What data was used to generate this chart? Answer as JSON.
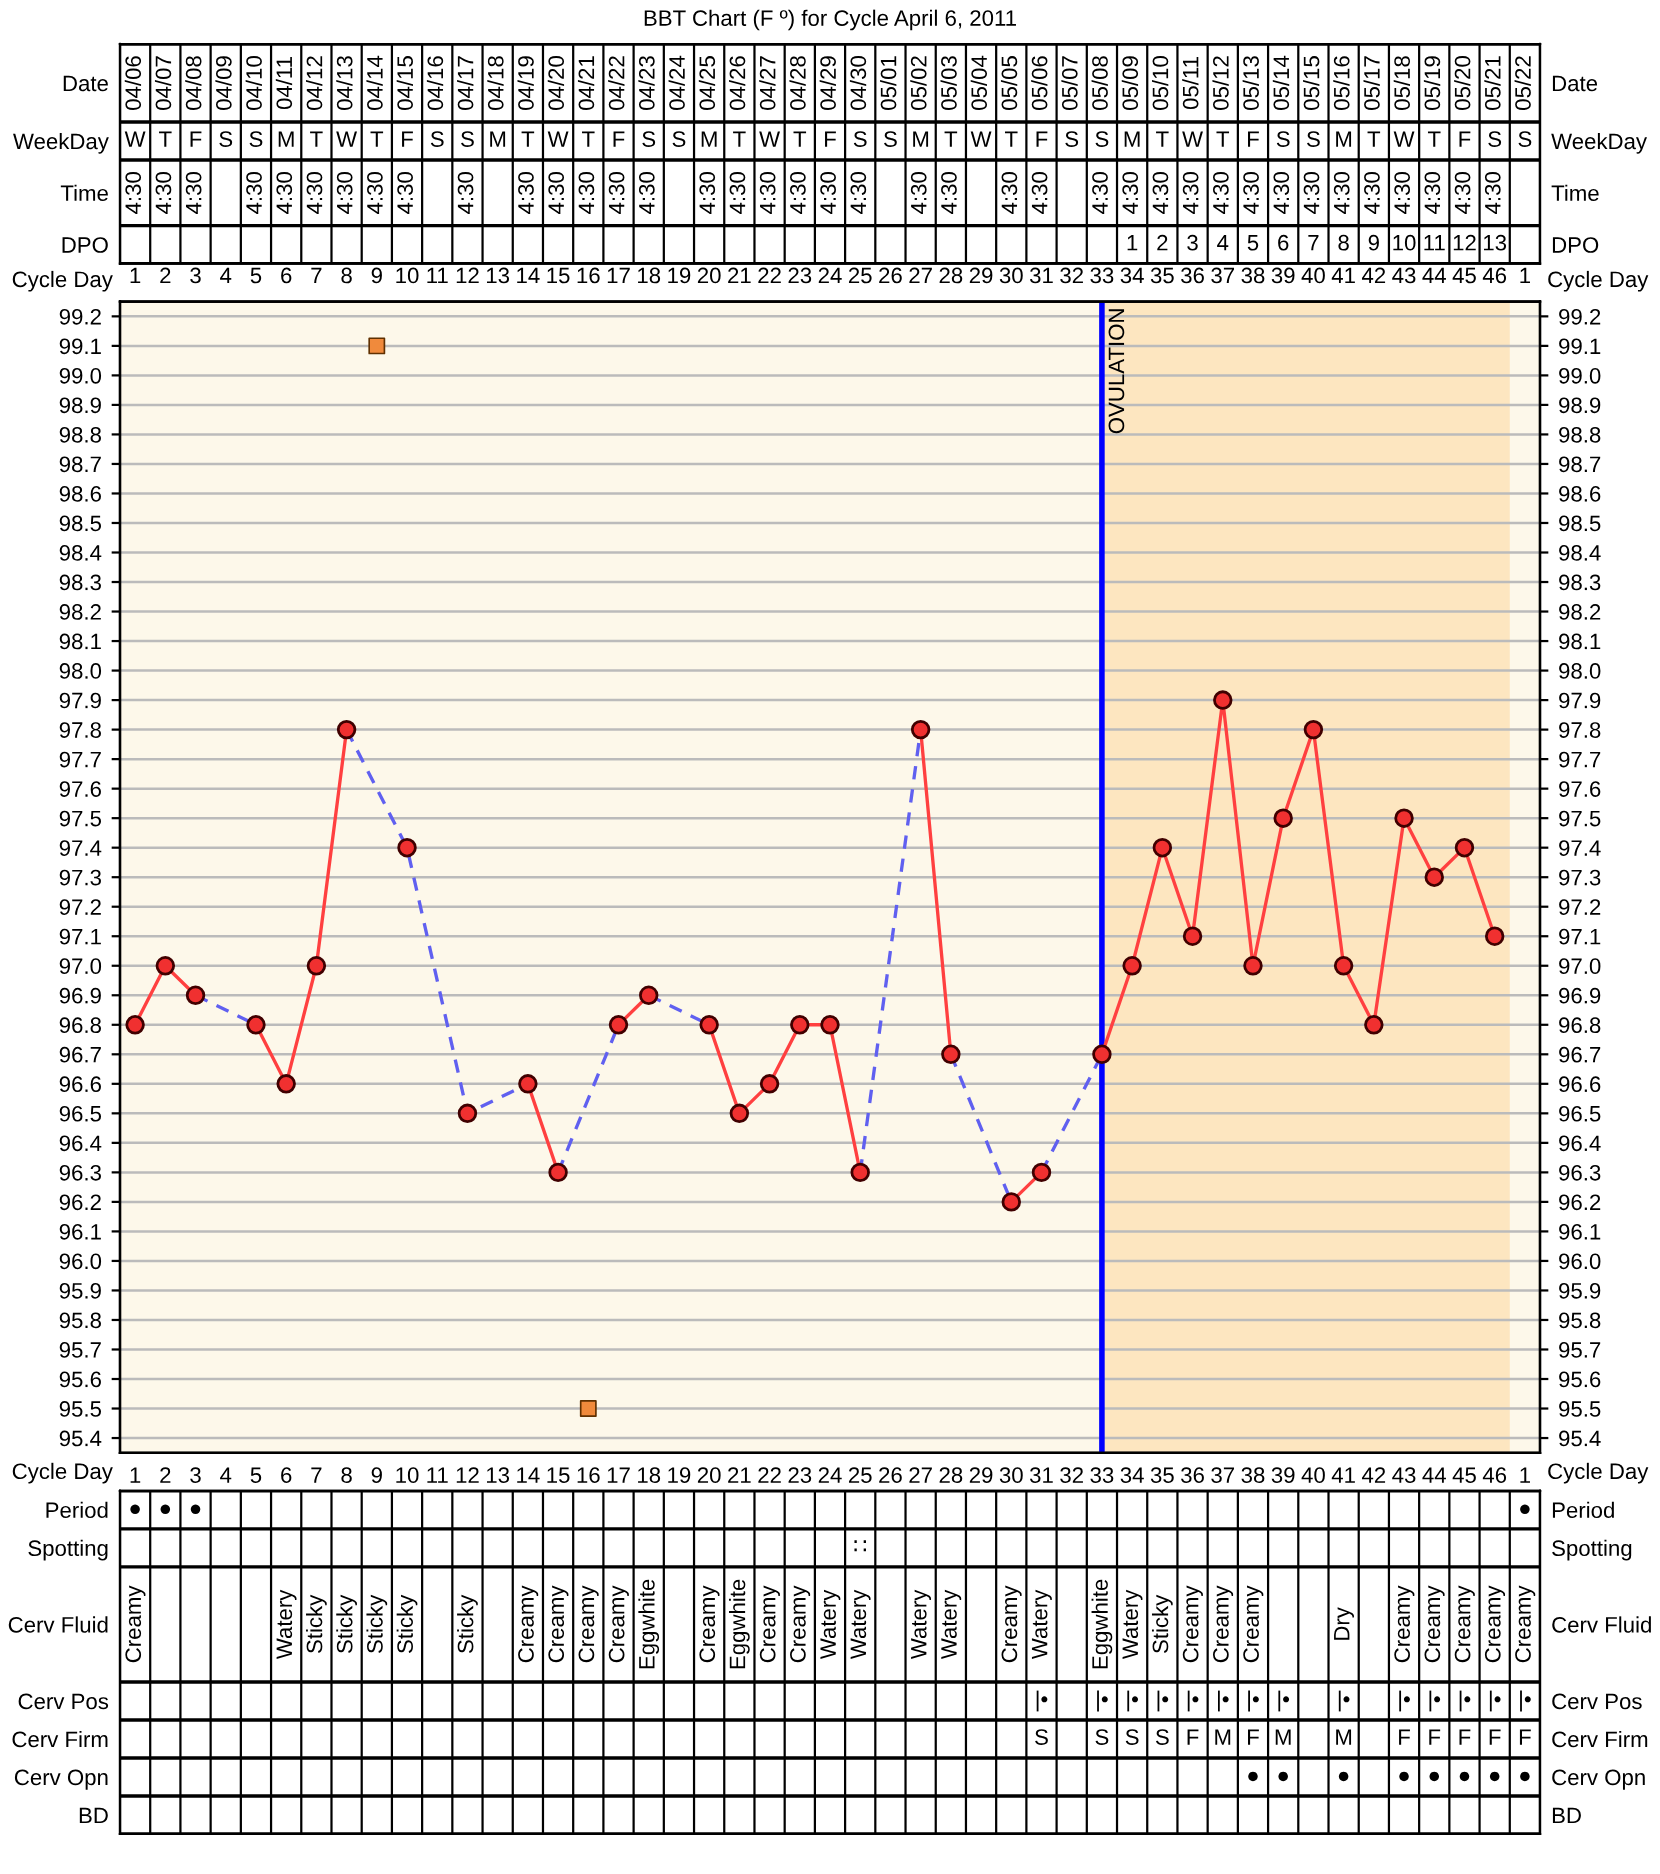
{
  "chart_data": [
    {
      "type": "heatmap",
      "title": "BBT Chart (F º) for Cycle April 6, 2011",
      "categories": [
        null,
        null,
        null,
        null,
        null,
        null,
        null,
        null,
        null,
        null,
        null,
        null,
        null,
        null,
        null,
        null,
        null,
        null,
        null,
        null,
        null,
        null,
        null,
        null,
        null,
        null,
        null,
        null,
        null,
        null,
        null,
        null,
        null,
        null,
        null,
        null,
        null,
        null,
        null,
        null,
        null,
        null,
        null,
        null,
        null,
        null,
        null
      ],
      "y_categories": [
        "Date",
        "WeekDay",
        "Time",
        "DPO"
      ],
      "y2_categories": [
        "Date",
        "WeekDay",
        "Time",
        "DPO"
      ],
      "cells": [
        [
          null,
          null,
          null,
          null,
          null,
          null,
          null,
          null,
          null,
          null,
          null,
          null,
          null,
          null,
          null,
          null,
          null,
          null,
          null,
          null,
          null,
          null,
          null,
          null,
          null,
          null,
          null,
          null,
          null,
          null,
          null,
          null,
          null,
          null,
          null,
          null,
          null,
          null,
          null,
          null,
          null,
          null,
          null,
          null,
          null,
          null,
          null
        ],
        [
          null,
          null,
          null,
          null,
          null,
          null,
          null,
          null,
          null,
          null,
          null,
          null,
          null,
          null,
          null,
          null,
          null,
          null,
          null,
          null,
          null,
          null,
          null,
          null,
          null,
          null,
          null,
          null,
          null,
          null,
          null,
          null,
          null,
          null,
          null,
          null,
          null,
          null,
          null,
          null,
          null,
          null,
          null,
          null,
          null,
          null,
          null
        ],
        [
          null,
          null,
          null,
          null,
          null,
          null,
          null,
          null,
          null,
          null,
          null,
          null,
          null,
          null,
          null,
          null,
          null,
          null,
          null,
          null,
          null,
          null,
          null,
          null,
          null,
          null,
          null,
          null,
          null,
          null,
          null,
          null,
          null,
          null,
          null,
          null,
          null,
          null,
          null,
          null,
          null,
          null,
          null,
          null,
          null,
          null,
          null
        ],
        [
          null,
          null,
          null,
          null,
          null,
          null,
          null,
          null,
          null,
          null,
          null,
          null,
          null,
          null,
          null,
          null,
          null,
          null,
          null,
          null,
          null,
          null,
          null,
          null,
          null,
          null,
          null,
          null,
          null,
          null,
          null,
          null,
          null,
          null,
          null,
          null,
          null,
          null,
          null,
          null,
          null,
          null,
          null,
          null,
          null,
          null,
          null
        ]
      ],
      "cell_labels": [
        [
          "04/06",
          "04/07",
          "04/08",
          "04/09",
          "04/10",
          "04/11",
          "04/12",
          "04/13",
          "04/14",
          "04/15",
          "04/16",
          "04/17",
          "04/18",
          "04/19",
          "04/20",
          "04/21",
          "04/22",
          "04/23",
          "04/24",
          "04/25",
          "04/26",
          "04/27",
          "04/28",
          "04/29",
          "04/30",
          "05/01",
          "05/02",
          "05/03",
          "05/04",
          "05/05",
          "05/06",
          "05/07",
          "05/08",
          "05/09",
          "05/10",
          "05/11",
          "05/12",
          "05/13",
          "05/14",
          "05/15",
          "05/16",
          "05/17",
          "05/18",
          "05/19",
          "05/20",
          "05/21",
          "05/22"
        ],
        [
          "W",
          "T",
          "F",
          "S",
          "S",
          "M",
          "T",
          "W",
          "T",
          "F",
          "S",
          "S",
          "M",
          "T",
          "W",
          "T",
          "F",
          "S",
          "S",
          "M",
          "T",
          "W",
          "T",
          "F",
          "S",
          "S",
          "M",
          "T",
          "W",
          "T",
          "F",
          "S",
          "S",
          "M",
          "T",
          "W",
          "T",
          "F",
          "S",
          "S",
          "M",
          "T",
          "W",
          "T",
          "F",
          "S",
          "S"
        ],
        [
          "4:30",
          "4:30",
          "4:30",
          null,
          "4:30",
          "4:30",
          "4:30",
          "4:30",
          "4:30",
          "4:30",
          null,
          "4:30",
          null,
          "4:30",
          "4:30",
          "4:30",
          "4:30",
          "4:30",
          null,
          "4:30",
          "4:30",
          "4:30",
          "4:30",
          "4:30",
          "4:30",
          null,
          "4:30",
          "4:30",
          null,
          "4:30",
          "4:30",
          null,
          "4:30",
          "4:30",
          "4:30",
          "4:30",
          "4:30",
          "4:30",
          "4:30",
          "4:30",
          "4:30",
          "4:30",
          "4:30",
          "4:30",
          "4:30",
          "4:30",
          null
        ],
        [
          null,
          null,
          null,
          null,
          null,
          null,
          null,
          null,
          null,
          null,
          null,
          null,
          null,
          null,
          null,
          null,
          null,
          null,
          null,
          null,
          null,
          null,
          null,
          null,
          null,
          null,
          null,
          null,
          null,
          null,
          null,
          null,
          null,
          "1",
          "2",
          "3",
          "4",
          "5",
          "6",
          "7",
          "8",
          "9",
          "10",
          "11",
          "12",
          "13",
          null
        ]
      ]
    },
    {
      "type": "line",
      "categories": [
        "1",
        "2",
        "3",
        "4",
        "5",
        "6",
        "7",
        "8",
        "9",
        "10",
        "11",
        "12",
        "13",
        "14",
        "15",
        "16",
        "17",
        "18",
        "19",
        "20",
        "21",
        "22",
        "23",
        "24",
        "25",
        "26",
        "27",
        "28",
        "29",
        "30",
        "31",
        "32",
        "33",
        "34",
        "35",
        "36",
        "37",
        "38",
        "39",
        "40",
        "41",
        "42",
        "43",
        "44",
        "45",
        "46",
        "1"
      ],
      "series": [
        {
          "color": "#ff4040",
          "line_style": "solid",
          "marker": "circle",
          "values": [
            96.8,
            97.0,
            96.9,
            null,
            96.8,
            96.6,
            97.0,
            97.8,
            null,
            97.4,
            null,
            96.5,
            null,
            96.6,
            96.3,
            null,
            96.8,
            96.9,
            null,
            96.8,
            96.5,
            96.6,
            96.8,
            96.8,
            96.3,
            null,
            97.8,
            96.7,
            null,
            96.2,
            96.3,
            null,
            96.7,
            97.0,
            97.4,
            97.1,
            97.9,
            97.0,
            97.5,
            97.8,
            97.0,
            96.8,
            97.5,
            97.3,
            97.4,
            97.1,
            null
          ]
        },
        {
          "color": "#6060f0",
          "line_style": "dashed",
          "marker": "none",
          "values": [
            null,
            null,
            96.9,
            null,
            96.8,
            null,
            null,
            null,
            null,
            null,
            null,
            null,
            null,
            null,
            null,
            null,
            null,
            null,
            null,
            null,
            null,
            null,
            null,
            null,
            null,
            null,
            null,
            null,
            null,
            null,
            null,
            null,
            null,
            null,
            null,
            null,
            null,
            null,
            null,
            null,
            null,
            null,
            null,
            null,
            null,
            null,
            null
          ]
        },
        {
          "color": "#6060f0",
          "line_style": "dashed",
          "marker": "none",
          "values": [
            null,
            null,
            null,
            null,
            null,
            null,
            null,
            97.8,
            null,
            97.4,
            null,
            96.5,
            null,
            96.6,
            null,
            null,
            null,
            null,
            null,
            null,
            null,
            null,
            null,
            null,
            null,
            null,
            null,
            null,
            null,
            null,
            null,
            null,
            null,
            null,
            null,
            null,
            null,
            null,
            null,
            null,
            null,
            null,
            null,
            null,
            null,
            null,
            null
          ]
        },
        {
          "color": "#6060f0",
          "line_style": "dashed",
          "marker": "none",
          "values": [
            null,
            null,
            null,
            null,
            null,
            null,
            null,
            null,
            null,
            null,
            null,
            null,
            null,
            null,
            96.3,
            null,
            96.8,
            null,
            null,
            null,
            null,
            null,
            null,
            null,
            null,
            null,
            null,
            null,
            null,
            null,
            null,
            null,
            null,
            null,
            null,
            null,
            null,
            null,
            null,
            null,
            null,
            null,
            null,
            null,
            null,
            null,
            null
          ]
        },
        {
          "color": "#6060f0",
          "line_style": "dashed",
          "marker": "none",
          "values": [
            null,
            null,
            null,
            null,
            null,
            null,
            null,
            null,
            null,
            null,
            null,
            null,
            null,
            null,
            null,
            null,
            null,
            96.9,
            null,
            96.8,
            null,
            null,
            null,
            null,
            null,
            null,
            null,
            null,
            null,
            null,
            null,
            null,
            null,
            null,
            null,
            null,
            null,
            null,
            null,
            null,
            null,
            null,
            null,
            null,
            null,
            null,
            null
          ]
        },
        {
          "color": "#6060f0",
          "line_style": "dashed",
          "marker": "none",
          "values": [
            null,
            null,
            null,
            null,
            null,
            null,
            null,
            null,
            null,
            null,
            null,
            null,
            null,
            null,
            null,
            null,
            null,
            null,
            null,
            null,
            null,
            null,
            null,
            null,
            96.3,
            null,
            97.8,
            null,
            null,
            null,
            null,
            null,
            null,
            null,
            null,
            null,
            null,
            null,
            null,
            null,
            null,
            null,
            null,
            null,
            null,
            null,
            null
          ]
        },
        {
          "color": "#6060f0",
          "line_style": "dashed",
          "marker": "none",
          "values": [
            null,
            null,
            null,
            null,
            null,
            null,
            null,
            null,
            null,
            null,
            null,
            null,
            null,
            null,
            null,
            null,
            null,
            null,
            null,
            null,
            null,
            null,
            null,
            null,
            null,
            null,
            null,
            96.7,
            null,
            96.2,
            null,
            null,
            null,
            null,
            null,
            null,
            null,
            null,
            null,
            null,
            null,
            null,
            null,
            null,
            null,
            null,
            null
          ]
        },
        {
          "color": "#6060f0",
          "line_style": "dashed",
          "marker": "none",
          "values": [
            null,
            null,
            null,
            null,
            null,
            null,
            null,
            null,
            null,
            null,
            null,
            null,
            null,
            null,
            null,
            null,
            null,
            null,
            null,
            null,
            null,
            null,
            null,
            null,
            null,
            null,
            null,
            null,
            null,
            null,
            96.3,
            null,
            96.7,
            null,
            null,
            null,
            null,
            null,
            null,
            null,
            null,
            null,
            null,
            null,
            null,
            null,
            null
          ]
        },
        {
          "type": "scatter",
          "color": "#f08a3c",
          "marker": "square",
          "values": [
            null,
            null,
            null,
            null,
            null,
            null,
            null,
            null,
            99.1,
            null,
            null,
            null,
            null,
            null,
            null,
            95.5,
            null,
            null,
            null,
            null,
            null,
            null,
            null,
            null,
            null,
            null,
            null,
            null,
            null,
            null,
            null,
            null,
            null,
            null,
            null,
            null,
            null,
            null,
            null,
            null,
            null,
            null,
            null,
            null,
            null,
            null,
            null
          ]
        }
      ],
      "xlabel": "Cycle Day",
      "x2label": "Cycle Day",
      "ylim": [
        95.35,
        99.25
      ],
      "yticks": [
        95.4,
        95.5,
        95.6,
        95.7,
        95.8,
        95.9,
        {
          "value": 96,
          "label": "96.0"
        },
        96.1,
        96.2,
        96.3,
        96.4,
        96.5,
        96.6,
        96.7,
        96.8,
        96.9,
        {
          "value": 97,
          "label": "97.0"
        },
        97.1,
        97.2,
        97.3,
        97.4,
        97.5,
        97.6,
        97.7,
        97.8,
        97.9,
        {
          "value": 98,
          "label": "98.0"
        },
        98.1,
        98.2,
        98.3,
        98.4,
        98.5,
        98.6,
        98.7,
        98.8,
        98.9,
        {
          "value": 99,
          "label": "99.0"
        },
        99.1,
        99.2
      ],
      "y2lim": [
        95.35,
        99.25
      ],
      "y2ticks": [
        95.4,
        95.5,
        95.6,
        95.7,
        95.8,
        95.9,
        {
          "value": 96,
          "label": "96.0"
        },
        96.1,
        96.2,
        96.3,
        96.4,
        96.5,
        96.6,
        96.7,
        96.8,
        96.9,
        {
          "value": 97,
          "label": "97.0"
        },
        97.1,
        97.2,
        97.3,
        97.4,
        97.5,
        97.6,
        97.7,
        97.8,
        97.9,
        {
          "value": 98,
          "label": "98.0"
        },
        98.1,
        98.2,
        98.3,
        98.4,
        98.5,
        98.6,
        98.7,
        98.8,
        98.9,
        {
          "value": 99,
          "label": "99.0"
        },
        99.1,
        99.2
      ],
      "grid": true,
      "ref_lines": [
        {
          "axis": "x",
          "value": "33",
          "label": "OVULATION",
          "color": "#0000ff",
          "line_style": "solid"
        }
      ],
      "bands": [
        {
          "axis": "x",
          "from": "33",
          "to": "46",
          "color": "#fde6c0"
        }
      ]
    },
    {
      "type": "heatmap",
      "categories": [
        null,
        null,
        null,
        null,
        null,
        null,
        null,
        null,
        null,
        null,
        null,
        null,
        null,
        null,
        null,
        null,
        null,
        null,
        null,
        null,
        null,
        null,
        null,
        null,
        null,
        null,
        null,
        null,
        null,
        null,
        null,
        null,
        null,
        null,
        null,
        null,
        null,
        null,
        null,
        null,
        null,
        null,
        null,
        null,
        null,
        null,
        null
      ],
      "y_categories": [
        "Period",
        "Spotting",
        "Cerv Fluid",
        "Cerv Pos",
        "Cerv Firm",
        "Cerv Opn",
        "BD"
      ],
      "y2_categories": [
        "Period",
        "Spotting",
        "Cerv Fluid",
        "Cerv Pos",
        "Cerv Firm",
        "Cerv Opn",
        "BD"
      ],
      "cells": [
        [
          null,
          null,
          null,
          null,
          null,
          null,
          null,
          null,
          null,
          null,
          null,
          null,
          null,
          null,
          null,
          null,
          null,
          null,
          null,
          null,
          null,
          null,
          null,
          null,
          null,
          null,
          null,
          null,
          null,
          null,
          null,
          null,
          null,
          null,
          null,
          null,
          null,
          null,
          null,
          null,
          null,
          null,
          null,
          null,
          null,
          null,
          null
        ],
        [
          null,
          null,
          null,
          null,
          null,
          null,
          null,
          null,
          null,
          null,
          null,
          null,
          null,
          null,
          null,
          null,
          null,
          null,
          null,
          null,
          null,
          null,
          null,
          null,
          null,
          null,
          null,
          null,
          null,
          null,
          null,
          null,
          null,
          null,
          null,
          null,
          null,
          null,
          null,
          null,
          null,
          null,
          null,
          null,
          null,
          null,
          null
        ],
        [
          null,
          null,
          null,
          null,
          null,
          null,
          null,
          null,
          null,
          null,
          null,
          null,
          null,
          null,
          null,
          null,
          null,
          null,
          null,
          null,
          null,
          null,
          null,
          null,
          null,
          null,
          null,
          null,
          null,
          null,
          null,
          null,
          null,
          null,
          null,
          null,
          null,
          null,
          null,
          null,
          null,
          null,
          null,
          null,
          null,
          null,
          null
        ],
        [
          null,
          null,
          null,
          null,
          null,
          null,
          null,
          null,
          null,
          null,
          null,
          null,
          null,
          null,
          null,
          null,
          null,
          null,
          null,
          null,
          null,
          null,
          null,
          null,
          null,
          null,
          null,
          null,
          null,
          null,
          null,
          null,
          null,
          null,
          null,
          null,
          null,
          null,
          null,
          null,
          null,
          null,
          null,
          null,
          null,
          null,
          null
        ],
        [
          null,
          null,
          null,
          null,
          null,
          null,
          null,
          null,
          null,
          null,
          null,
          null,
          null,
          null,
          null,
          null,
          null,
          null,
          null,
          null,
          null,
          null,
          null,
          null,
          null,
          null,
          null,
          null,
          null,
          null,
          null,
          null,
          null,
          null,
          null,
          null,
          null,
          null,
          null,
          null,
          null,
          null,
          null,
          null,
          null,
          null,
          null
        ],
        [
          null,
          null,
          null,
          null,
          null,
          null,
          null,
          null,
          null,
          null,
          null,
          null,
          null,
          null,
          null,
          null,
          null,
          null,
          null,
          null,
          null,
          null,
          null,
          null,
          null,
          null,
          null,
          null,
          null,
          null,
          null,
          null,
          null,
          null,
          null,
          null,
          null,
          null,
          null,
          null,
          null,
          null,
          null,
          null,
          null,
          null,
          null
        ],
        [
          null,
          null,
          null,
          null,
          null,
          null,
          null,
          null,
          null,
          null,
          null,
          null,
          null,
          null,
          null,
          null,
          null,
          null,
          null,
          null,
          null,
          null,
          null,
          null,
          null,
          null,
          null,
          null,
          null,
          null,
          null,
          null,
          null,
          null,
          null,
          null,
          null,
          null,
          null,
          null,
          null,
          null,
          null,
          null,
          null,
          null,
          null
        ]
      ],
      "cell_labels": [
        [
          "●",
          "●",
          "●",
          null,
          null,
          null,
          null,
          null,
          null,
          null,
          null,
          null,
          null,
          null,
          null,
          null,
          null,
          null,
          null,
          null,
          null,
          null,
          null,
          null,
          null,
          null,
          null,
          null,
          null,
          null,
          null,
          null,
          null,
          null,
          null,
          null,
          null,
          null,
          null,
          null,
          null,
          null,
          null,
          null,
          null,
          null,
          "●"
        ],
        [
          null,
          null,
          null,
          null,
          null,
          null,
          null,
          null,
          null,
          null,
          null,
          null,
          null,
          null,
          null,
          null,
          null,
          null,
          null,
          null,
          null,
          null,
          null,
          null,
          "∷",
          null,
          null,
          null,
          null,
          null,
          null,
          null,
          null,
          null,
          null,
          null,
          null,
          null,
          null,
          null,
          null,
          null,
          null,
          null,
          null,
          null,
          null
        ],
        [
          "Creamy",
          null,
          null,
          null,
          null,
          "Watery",
          "Sticky",
          "Sticky",
          "Sticky",
          "Sticky",
          null,
          "Sticky",
          null,
          "Creamy",
          "Creamy",
          "Creamy",
          "Creamy",
          "Eggwhite",
          null,
          "Creamy",
          "Eggwhite",
          "Creamy",
          "Creamy",
          "Watery",
          "Watery",
          null,
          "Watery",
          "Watery",
          null,
          "Creamy",
          "Watery",
          null,
          "Eggwhite",
          "Watery",
          "Sticky",
          "Creamy",
          "Creamy",
          "Creamy",
          null,
          null,
          "Dry",
          null,
          "Creamy",
          "Creamy",
          "Creamy",
          "Creamy",
          "Creamy"
        ],
        [
          null,
          null,
          null,
          null,
          null,
          null,
          null,
          null,
          null,
          null,
          null,
          null,
          null,
          null,
          null,
          null,
          null,
          null,
          null,
          null,
          null,
          null,
          null,
          null,
          null,
          null,
          null,
          null,
          null,
          null,
          "|•",
          null,
          "|•",
          "|•",
          "|•",
          "|•",
          "|•",
          "|•",
          "|•",
          null,
          "|•",
          null,
          "|•",
          "|•",
          "|•",
          "|•",
          "|•"
        ],
        [
          null,
          null,
          null,
          null,
          null,
          null,
          null,
          null,
          null,
          null,
          null,
          null,
          null,
          null,
          null,
          null,
          null,
          null,
          null,
          null,
          null,
          null,
          null,
          null,
          null,
          null,
          null,
          null,
          null,
          null,
          "S",
          null,
          "S",
          "S",
          "S",
          "F",
          "M",
          "F",
          "M",
          null,
          "M",
          null,
          "F",
          "F",
          "F",
          "F",
          "F"
        ],
        [
          null,
          null,
          null,
          null,
          null,
          null,
          null,
          null,
          null,
          null,
          null,
          null,
          null,
          null,
          null,
          null,
          null,
          null,
          null,
          null,
          null,
          null,
          null,
          null,
          null,
          null,
          null,
          null,
          null,
          null,
          null,
          null,
          null,
          null,
          null,
          null,
          null,
          "●",
          "●",
          null,
          "●",
          null,
          "●",
          "●",
          "●",
          "●",
          "●"
        ],
        [
          null,
          null,
          null,
          null,
          null,
          null,
          null,
          null,
          null,
          null,
          null,
          null,
          null,
          null,
          null,
          null,
          null,
          null,
          null,
          null,
          null,
          null,
          null,
          null,
          null,
          null,
          null,
          null,
          null,
          null,
          null,
          null,
          null,
          null,
          null,
          null,
          null,
          null,
          null,
          null,
          null,
          null,
          null,
          null,
          null,
          null,
          null
        ]
      ]
    }
  ]
}
